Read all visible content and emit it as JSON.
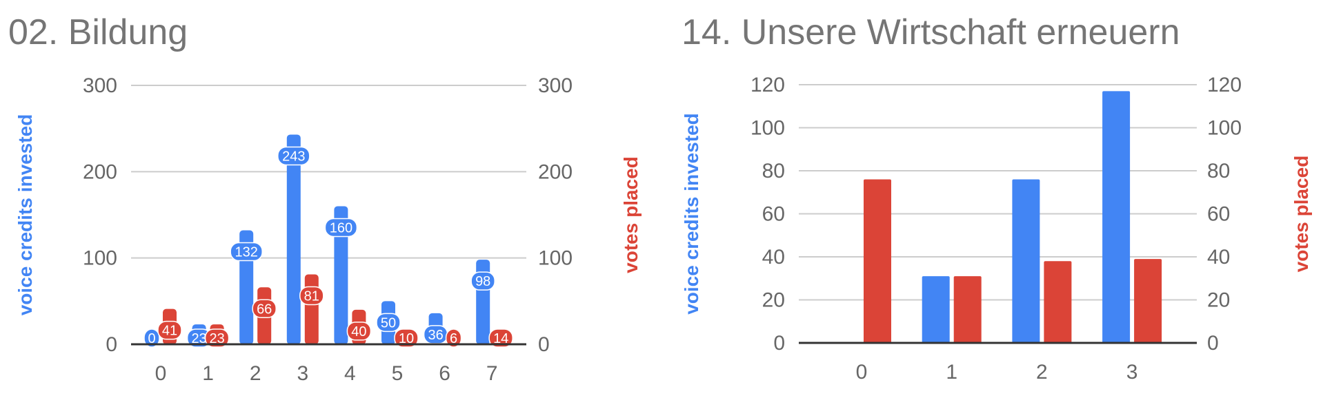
{
  "chart_data": [
    {
      "type": "bar",
      "title": "02. Bildung",
      "categories": [
        "0",
        "1",
        "2",
        "3",
        "4",
        "5",
        "6",
        "7"
      ],
      "series": [
        {
          "name": "voice credits invested",
          "color": "#4285f4",
          "axis": "left",
          "values": [
            0,
            23,
            132,
            243,
            160,
            50,
            36,
            98
          ]
        },
        {
          "name": "votes placed",
          "color": "#db4437",
          "axis": "right",
          "values": [
            41,
            23,
            66,
            81,
            40,
            10,
            6,
            14
          ]
        }
      ],
      "ylabel_left": "voice credits invested",
      "ylabel_right": "votes placed",
      "ylim": [
        0,
        300
      ],
      "yticks": [
        "0",
        "100",
        "200",
        "300"
      ],
      "data_labels": true,
      "data_label_texts": [
        [
          "0",
          "23",
          "132",
          "243",
          "160",
          "50",
          "36",
          "98"
        ],
        [
          "41",
          "23",
          "66",
          "81",
          "40",
          "10",
          "6",
          "14"
        ]
      ],
      "grid": true,
      "legend": "none"
    },
    {
      "type": "bar",
      "title": "14. Unsere Wirtschaft erneuern",
      "categories": [
        "0",
        "1",
        "2",
        "3"
      ],
      "series": [
        {
          "name": "voice credits invested",
          "color": "#4285f4",
          "axis": "left",
          "values": [
            0,
            31,
            76,
            117
          ]
        },
        {
          "name": "votes placed",
          "color": "#db4437",
          "axis": "right",
          "values": [
            76,
            31,
            38,
            39
          ]
        }
      ],
      "ylabel_left": "voice credits invested",
      "ylabel_right": "votes placed",
      "ylim": [
        0,
        120
      ],
      "yticks": [
        "0",
        "20",
        "40",
        "60",
        "80",
        "100",
        "120"
      ],
      "data_labels": false,
      "grid": true,
      "legend": "none"
    }
  ]
}
